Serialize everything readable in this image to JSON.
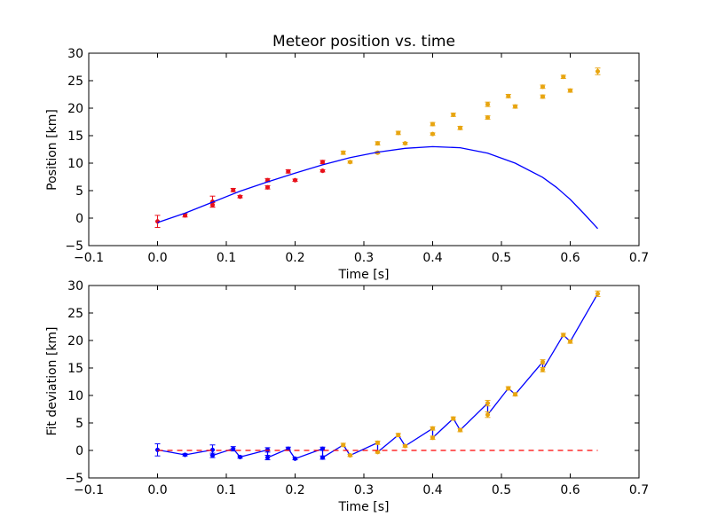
{
  "chart_data": [
    {
      "type": "scatter",
      "title": "Meteor position vs. time",
      "xlabel": "Time [s]",
      "ylabel": "Position [km]",
      "xlim": [
        -0.1,
        0.7
      ],
      "ylim": [
        -5,
        30
      ],
      "xticks": [
        -0.1,
        0.0,
        0.1,
        0.2,
        0.3,
        0.4,
        0.5,
        0.6,
        0.7
      ],
      "yticks": [
        -5,
        0,
        5,
        10,
        15,
        20,
        25,
        30
      ],
      "xtick_labels": [
        "−0.1",
        "0.0",
        "0.1",
        "0.2",
        "0.3",
        "0.4",
        "0.5",
        "0.6",
        "0.7"
      ],
      "ytick_labels": [
        "−5",
        "0",
        "5",
        "10",
        "15",
        "20",
        "25",
        "30"
      ],
      "grid": false,
      "series": [
        {
          "kind": "errorbar-points",
          "color": "#e8101a",
          "points": [
            {
              "x": 0.0,
              "y": -0.6,
              "err": 1.1
            },
            {
              "x": 0.04,
              "y": 0.5,
              "err": 0.3
            },
            {
              "x": 0.08,
              "y": 3.0,
              "err": 1.0
            },
            {
              "x": 0.08,
              "y": 2.4,
              "err": 0.4
            },
            {
              "x": 0.11,
              "y": 5.1,
              "err": 0.3
            },
            {
              "x": 0.12,
              "y": 3.9,
              "err": 0.2
            },
            {
              "x": 0.16,
              "y": 6.9,
              "err": 0.3
            },
            {
              "x": 0.16,
              "y": 5.6,
              "err": 0.3
            },
            {
              "x": 0.19,
              "y": 8.5,
              "err": 0.3
            },
            {
              "x": 0.2,
              "y": 6.9,
              "err": 0.2
            },
            {
              "x": 0.24,
              "y": 10.2,
              "err": 0.3
            },
            {
              "x": 0.24,
              "y": 8.6,
              "err": 0.2
            }
          ]
        },
        {
          "kind": "errorbar-points",
          "color": "#e8a510",
          "points": [
            {
              "x": 0.27,
              "y": 11.9,
              "err": 0.3
            },
            {
              "x": 0.28,
              "y": 10.2,
              "err": 0.2
            },
            {
              "x": 0.32,
              "y": 13.6,
              "err": 0.3
            },
            {
              "x": 0.32,
              "y": 11.9,
              "err": 0.2
            },
            {
              "x": 0.35,
              "y": 15.5,
              "err": 0.3
            },
            {
              "x": 0.36,
              "y": 13.6,
              "err": 0.2
            },
            {
              "x": 0.4,
              "y": 17.1,
              "err": 0.3
            },
            {
              "x": 0.4,
              "y": 15.3,
              "err": 0.2
            },
            {
              "x": 0.43,
              "y": 18.8,
              "err": 0.3
            },
            {
              "x": 0.44,
              "y": 16.4,
              "err": 0.3
            },
            {
              "x": 0.48,
              "y": 20.7,
              "err": 0.4
            },
            {
              "x": 0.48,
              "y": 18.3,
              "err": 0.3
            },
            {
              "x": 0.51,
              "y": 22.2,
              "err": 0.3
            },
            {
              "x": 0.52,
              "y": 20.3,
              "err": 0.3
            },
            {
              "x": 0.56,
              "y": 23.9,
              "err": 0.3
            },
            {
              "x": 0.56,
              "y": 22.1,
              "err": 0.3
            },
            {
              "x": 0.59,
              "y": 25.7,
              "err": 0.3
            },
            {
              "x": 0.6,
              "y": 23.2,
              "err": 0.3
            },
            {
              "x": 0.64,
              "y": 26.7,
              "err": 0.6
            }
          ]
        },
        {
          "kind": "line",
          "color": "#0000ff",
          "x": [
            0.0,
            0.04,
            0.08,
            0.12,
            0.16,
            0.2,
            0.24,
            0.28,
            0.32,
            0.36,
            0.4,
            0.44,
            0.48,
            0.52,
            0.56,
            0.58,
            0.6,
            0.62,
            0.64
          ],
          "y": [
            -0.8,
            0.9,
            2.9,
            4.9,
            6.6,
            8.2,
            9.7,
            11.0,
            12.0,
            12.7,
            13.0,
            12.8,
            11.8,
            10.0,
            7.4,
            5.6,
            3.4,
            0.8,
            -1.9
          ]
        }
      ]
    },
    {
      "type": "scatter",
      "title": "",
      "xlabel": "Time [s]",
      "ylabel": "Fit deviation [km]",
      "xlim": [
        -0.1,
        0.7
      ],
      "ylim": [
        -5,
        30
      ],
      "xticks": [
        -0.1,
        0.0,
        0.1,
        0.2,
        0.3,
        0.4,
        0.5,
        0.6,
        0.7
      ],
      "yticks": [
        -5,
        0,
        5,
        10,
        15,
        20,
        25,
        30
      ],
      "xtick_labels": [
        "−0.1",
        "0.0",
        "0.1",
        "0.2",
        "0.3",
        "0.4",
        "0.5",
        "0.6",
        "0.7"
      ],
      "ytick_labels": [
        "−5",
        "0",
        "5",
        "10",
        "15",
        "20",
        "25",
        "30"
      ],
      "grid": false,
      "series": [
        {
          "kind": "line",
          "color": "#0000ff",
          "x": [
            0.0,
            0.04,
            0.08,
            0.08,
            0.11,
            0.12,
            0.16,
            0.16,
            0.19,
            0.2,
            0.24,
            0.24,
            0.27,
            0.28,
            0.32,
            0.32,
            0.35,
            0.36,
            0.4,
            0.4,
            0.43,
            0.44,
            0.48,
            0.48,
            0.51,
            0.52,
            0.56,
            0.56,
            0.59,
            0.6,
            0.64
          ],
          "y": [
            0.1,
            -0.8,
            0.1,
            -0.9,
            0.3,
            -1.2,
            0.1,
            -1.3,
            0.3,
            -1.5,
            0.3,
            -1.3,
            1.0,
            -0.9,
            1.4,
            -0.3,
            2.8,
            0.8,
            4.0,
            2.3,
            5.8,
            3.7,
            8.6,
            6.5,
            11.3,
            10.2,
            16.1,
            14.7,
            21.0,
            19.8,
            28.5
          ]
        },
        {
          "kind": "errorbar-points",
          "color": "#0000ff",
          "points": [
            {
              "x": 0.0,
              "y": 0.1,
              "err": 1.1
            },
            {
              "x": 0.04,
              "y": -0.8,
              "err": 0.2
            },
            {
              "x": 0.08,
              "y": 0.1,
              "err": 0.9
            },
            {
              "x": 0.08,
              "y": -0.9,
              "err": 0.4
            },
            {
              "x": 0.11,
              "y": 0.3,
              "err": 0.4
            },
            {
              "x": 0.12,
              "y": -1.2,
              "err": 0.2
            },
            {
              "x": 0.16,
              "y": 0.1,
              "err": 0.4
            },
            {
              "x": 0.16,
              "y": -1.3,
              "err": 0.4
            },
            {
              "x": 0.19,
              "y": 0.3,
              "err": 0.3
            },
            {
              "x": 0.2,
              "y": -1.5,
              "err": 0.2
            },
            {
              "x": 0.24,
              "y": 0.3,
              "err": 0.3
            },
            {
              "x": 0.24,
              "y": -1.3,
              "err": 0.3
            }
          ]
        },
        {
          "kind": "errorbar-points",
          "color": "#e8a510",
          "points": [
            {
              "x": 0.27,
              "y": 1.0,
              "err": 0.3
            },
            {
              "x": 0.28,
              "y": -0.9,
              "err": 0.2
            },
            {
              "x": 0.32,
              "y": 1.4,
              "err": 0.3
            },
            {
              "x": 0.32,
              "y": -0.3,
              "err": 0.2
            },
            {
              "x": 0.35,
              "y": 2.8,
              "err": 0.3
            },
            {
              "x": 0.36,
              "y": 0.8,
              "err": 0.2
            },
            {
              "x": 0.4,
              "y": 4.0,
              "err": 0.3
            },
            {
              "x": 0.4,
              "y": 2.3,
              "err": 0.3
            },
            {
              "x": 0.43,
              "y": 5.8,
              "err": 0.3
            },
            {
              "x": 0.44,
              "y": 3.7,
              "err": 0.3
            },
            {
              "x": 0.48,
              "y": 8.6,
              "err": 0.5
            },
            {
              "x": 0.48,
              "y": 6.5,
              "err": 0.5
            },
            {
              "x": 0.51,
              "y": 11.3,
              "err": 0.3
            },
            {
              "x": 0.52,
              "y": 10.2,
              "err": 0.3
            },
            {
              "x": 0.56,
              "y": 16.1,
              "err": 0.4
            },
            {
              "x": 0.56,
              "y": 14.7,
              "err": 0.4
            },
            {
              "x": 0.59,
              "y": 21.0,
              "err": 0.3
            },
            {
              "x": 0.6,
              "y": 19.8,
              "err": 0.3
            },
            {
              "x": 0.64,
              "y": 28.5,
              "err": 0.5
            }
          ]
        },
        {
          "kind": "dashed-line",
          "color": "#ff0000",
          "x": [
            0.0,
            0.64
          ],
          "y": [
            0.0,
            0.0
          ]
        }
      ]
    }
  ]
}
